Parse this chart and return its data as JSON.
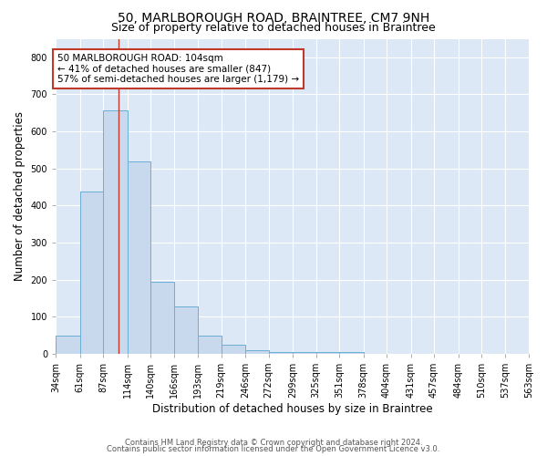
{
  "title": "50, MARLBOROUGH ROAD, BRAINTREE, CM7 9NH",
  "subtitle": "Size of property relative to detached houses in Braintree",
  "xlabel": "Distribution of detached houses by size in Braintree",
  "ylabel": "Number of detached properties",
  "bin_edges": [
    34,
    61,
    87,
    114,
    140,
    166,
    193,
    219,
    246,
    272,
    299,
    325,
    351,
    378,
    404,
    431,
    457,
    484,
    510,
    537,
    563
  ],
  "bar_heights": [
    48,
    437,
    657,
    520,
    193,
    127,
    48,
    25,
    10,
    5,
    5,
    5,
    5,
    0,
    0,
    0,
    0,
    0,
    0,
    0
  ],
  "bar_color": "#c8d9ed",
  "bar_edge_color": "#6aaed6",
  "vline_x": 104,
  "vline_color": "#c0392b",
  "annotation_text": "50 MARLBOROUGH ROAD: 104sqm\n← 41% of detached houses are smaller (847)\n57% of semi-detached houses are larger (1,179) →",
  "annotation_box_color": "white",
  "annotation_box_edge_color": "#c0392b",
  "ylim": [
    0,
    850
  ],
  "yticks": [
    0,
    100,
    200,
    300,
    400,
    500,
    600,
    700,
    800
  ],
  "footer_line1": "Contains HM Land Registry data © Crown copyright and database right 2024.",
  "footer_line2": "Contains public sector information licensed under the Open Government Licence v3.0.",
  "bg_color": "#ffffff",
  "plot_bg_color": "#dce8f5",
  "grid_color": "#ffffff",
  "title_fontsize": 10,
  "subtitle_fontsize": 9,
  "tick_fontsize": 7,
  "label_fontsize": 8.5,
  "annotation_fontsize": 7.5,
  "footer_fontsize": 6,
  "footer_color": "#555555"
}
